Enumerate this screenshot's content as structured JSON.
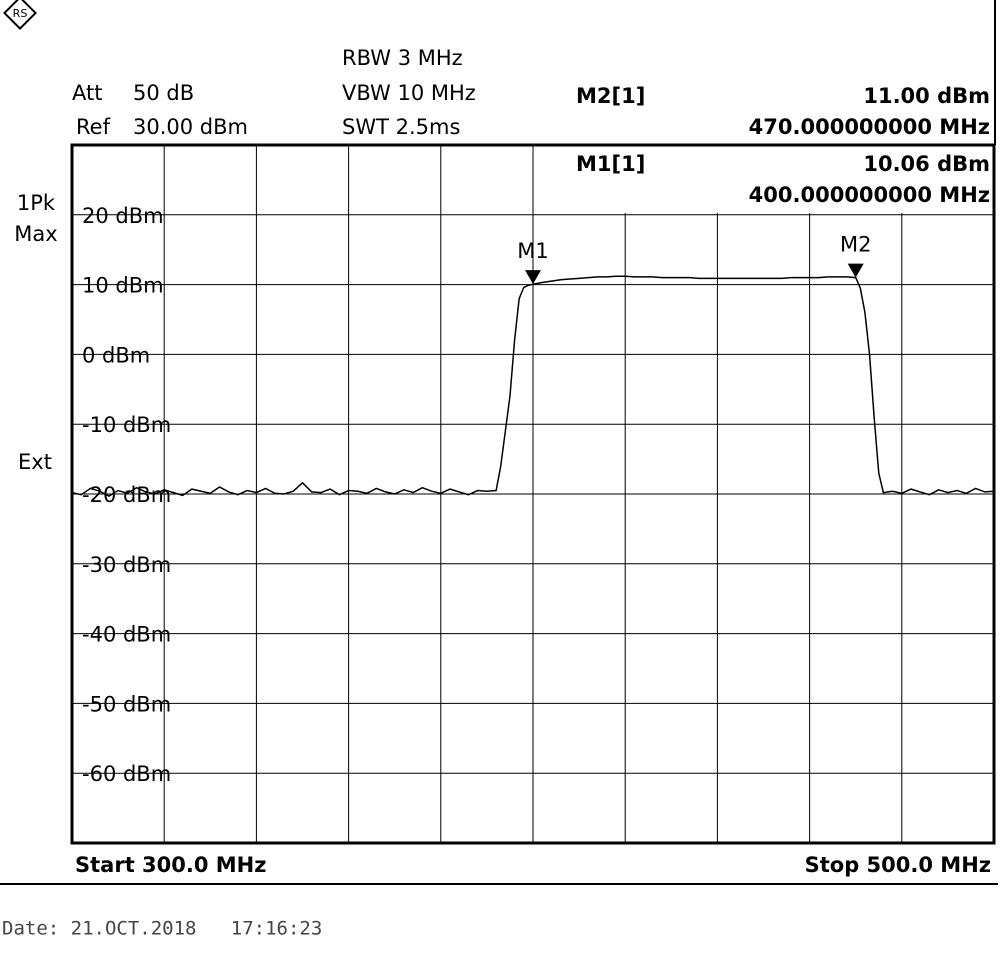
{
  "settings": {
    "att_label": "Att",
    "att_value": "50 dB",
    "ref_label": "Ref",
    "ref_value": "30.00 dBm",
    "rbw": "RBW 3 MHz",
    "vbw": "VBW 10 MHz",
    "swt": "SWT 2.5ms",
    "detector": "1Pk",
    "trace_mode": "Max",
    "trigger": "Ext",
    "date": "Date: 21.OCT.2018   17:16:23"
  },
  "chart_data": {
    "type": "line",
    "color": "#000000",
    "grid": true,
    "x_start_label": "Start 300.0 MHz",
    "x_stop_label": "Stop 500.0 MHz",
    "xlim": [
      300,
      500
    ],
    "ylim": [
      -70,
      30
    ],
    "yticks": [
      {
        "value": 20,
        "label": "20 dBm"
      },
      {
        "value": 10,
        "label": "10 dBm"
      },
      {
        "value": 0,
        "label": "0 dBm"
      },
      {
        "value": -10,
        "label": "-10 dBm"
      },
      {
        "value": -20,
        "label": "-20 dBm"
      },
      {
        "value": -30,
        "label": "-30 dBm"
      },
      {
        "value": -40,
        "label": "-40 dBm"
      },
      {
        "value": -50,
        "label": "-50 dBm"
      },
      {
        "value": -60,
        "label": "-60 dBm"
      }
    ],
    "x": [
      300,
      302,
      304,
      306,
      308,
      310,
      312,
      314,
      316,
      318,
      320,
      322,
      324,
      326,
      328,
      330,
      332,
      334,
      336,
      338,
      340,
      342,
      344,
      346,
      348,
      350,
      352,
      354,
      356,
      358,
      360,
      362,
      364,
      366,
      368,
      370,
      372,
      374,
      376,
      378,
      380,
      382,
      384,
      386,
      388,
      390,
      392,
      393,
      394,
      395,
      396,
      397,
      398,
      399,
      400,
      402,
      404,
      406,
      408,
      410,
      412,
      414,
      416,
      418,
      420,
      422,
      424,
      426,
      428,
      430,
      432,
      434,
      436,
      438,
      440,
      442,
      444,
      446,
      448,
      450,
      452,
      454,
      456,
      458,
      460,
      462,
      464,
      466,
      468,
      470,
      471,
      472,
      473,
      474,
      475,
      476,
      478,
      480,
      482,
      484,
      486,
      488,
      490,
      492,
      494,
      496,
      498,
      500
    ],
    "values": [
      -19.8,
      -20.1,
      -19.2,
      -19.6,
      -20.3,
      -19.5,
      -19.9,
      -19.1,
      -19.7,
      -20.0,
      -19.4,
      -19.8,
      -20.2,
      -19.3,
      -19.6,
      -19.9,
      -19.0,
      -19.7,
      -20.1,
      -19.5,
      -19.8,
      -19.2,
      -19.9,
      -20.0,
      -19.6,
      -18.4,
      -19.7,
      -19.8,
      -19.3,
      -20.1,
      -19.5,
      -19.6,
      -19.9,
      -19.2,
      -19.7,
      -20.0,
      -19.4,
      -19.8,
      -19.1,
      -19.6,
      -19.9,
      -19.3,
      -19.7,
      -20.1,
      -19.5,
      -19.6,
      -19.5,
      -16,
      -11,
      -6,
      2,
      8,
      9.6,
      9.9,
      10.06,
      10.3,
      10.5,
      10.7,
      10.8,
      10.9,
      11.0,
      11.1,
      11.1,
      11.2,
      11.2,
      11.1,
      11.1,
      11.1,
      11.0,
      11.0,
      11.0,
      11.0,
      10.9,
      10.9,
      10.9,
      10.9,
      10.9,
      10.9,
      10.9,
      10.9,
      10.9,
      10.9,
      11.0,
      11.0,
      11.0,
      11.0,
      11.1,
      11.1,
      11.1,
      11.0,
      9.5,
      6,
      0,
      -9,
      -17,
      -19.8,
      -19.6,
      -19.9,
      -19.3,
      -19.7,
      -20.1,
      -19.4,
      -19.8,
      -19.5,
      -19.9,
      -19.2,
      -19.7,
      -19.6
    ],
    "markers": [
      {
        "label": "M1",
        "x": 400,
        "value": 10.06,
        "readout_name": "M1[1]",
        "readout_value": "10.06 dBm",
        "readout_freq": "400.000000000 MHz"
      },
      {
        "label": "M2",
        "x": 470,
        "value": 11.0,
        "readout_name": "M2[1]",
        "readout_value": "11.00 dBm",
        "readout_freq": "470.000000000 MHz"
      }
    ]
  }
}
